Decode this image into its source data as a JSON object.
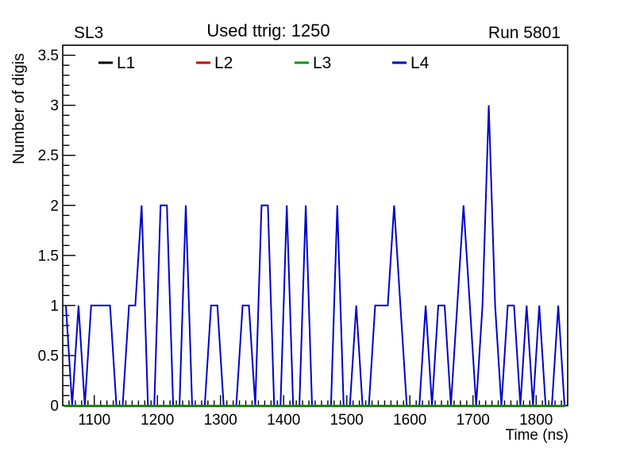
{
  "header": {
    "left": "SL3",
    "center": "Used ttrig: 1250",
    "right": "Run 5801"
  },
  "legend": [
    {
      "label": "L1",
      "color": "#000000"
    },
    {
      "label": "L2",
      "color": "#cc0000"
    },
    {
      "label": "L3",
      "color": "#009900"
    },
    {
      "label": "L4",
      "color": "#0000cc"
    }
  ],
  "chart_data": {
    "type": "line",
    "title": "Used ttrig: 1250",
    "xlabel": "Time (ns)",
    "ylabel": "Number of digis",
    "xlim": [
      1050,
      1850
    ],
    "ylim": [
      0,
      3.6
    ],
    "x_ticks": [
      1100,
      1200,
      1300,
      1400,
      1500,
      1600,
      1700,
      1800
    ],
    "x_minor_step": 10,
    "y_ticks": [
      0,
      0.5,
      1,
      1.5,
      2,
      2.5,
      3,
      3.5
    ],
    "y_tick_labels": [
      "0",
      "0.5",
      "1",
      "1.5",
      "2",
      "2.5",
      "3",
      "3.5"
    ],
    "y_minor_step": 0.1,
    "bin_width": 10,
    "x": [
      1055,
      1065,
      1075,
      1085,
      1095,
      1105,
      1115,
      1125,
      1135,
      1145,
      1155,
      1165,
      1175,
      1185,
      1195,
      1205,
      1215,
      1225,
      1235,
      1245,
      1255,
      1265,
      1275,
      1285,
      1295,
      1305,
      1315,
      1325,
      1335,
      1345,
      1355,
      1365,
      1375,
      1385,
      1395,
      1405,
      1415,
      1425,
      1435,
      1445,
      1455,
      1465,
      1475,
      1485,
      1495,
      1505,
      1515,
      1525,
      1535,
      1545,
      1555,
      1565,
      1575,
      1585,
      1595,
      1605,
      1615,
      1625,
      1635,
      1645,
      1655,
      1665,
      1675,
      1685,
      1695,
      1705,
      1715,
      1725,
      1735,
      1745,
      1755,
      1765,
      1775,
      1785,
      1795,
      1805,
      1815,
      1825,
      1835,
      1845
    ],
    "series": [
      {
        "name": "L1",
        "color": "#000000",
        "values": [
          0,
          0,
          0,
          0,
          0,
          0,
          0,
          0,
          0,
          0,
          0,
          0,
          0,
          0,
          0,
          0,
          0,
          0,
          0,
          0,
          0,
          0,
          0,
          0,
          0,
          0,
          0,
          0,
          0,
          0,
          0,
          0,
          0,
          0,
          0,
          0,
          0,
          0,
          0,
          0,
          0,
          0,
          0,
          0,
          0,
          0,
          0,
          0,
          0,
          0,
          0,
          0,
          0,
          0,
          0,
          0,
          0,
          0,
          0,
          0,
          0,
          0,
          0,
          0,
          0,
          0,
          0,
          0,
          0,
          0,
          0,
          0,
          0,
          0,
          0,
          0,
          0,
          0,
          0,
          0
        ]
      },
      {
        "name": "L2",
        "color": "#cc0000",
        "values": [
          0,
          0,
          0,
          0,
          0,
          0,
          0,
          0,
          0,
          0,
          0,
          0,
          0,
          0,
          0,
          0,
          0,
          0,
          0,
          0,
          0,
          0,
          0,
          0,
          0,
          0,
          0,
          0,
          0,
          0,
          0,
          0,
          0,
          0,
          0,
          0,
          0,
          0,
          0,
          0,
          0,
          0,
          0,
          0,
          0,
          0,
          0,
          0,
          0,
          0,
          0,
          0,
          0,
          0,
          0,
          0,
          0,
          0,
          0,
          0,
          0,
          0,
          0,
          0,
          0,
          0,
          0,
          0,
          0,
          0,
          0,
          0,
          0,
          0,
          0,
          0,
          0,
          0,
          0,
          0
        ]
      },
      {
        "name": "L3",
        "color": "#009900",
        "values": [
          0,
          0,
          0,
          0,
          0,
          0,
          0,
          0,
          0,
          0,
          0,
          0,
          0,
          0,
          0,
          0,
          0,
          0,
          0,
          0,
          0,
          0,
          0,
          0,
          0,
          0,
          0,
          0,
          0,
          0,
          0,
          0,
          0,
          0,
          0,
          0,
          0,
          0,
          0,
          0,
          0,
          0,
          0,
          0,
          0,
          0,
          0,
          0,
          0,
          0,
          0,
          0,
          0,
          0,
          0,
          0,
          0,
          0,
          0,
          0,
          0,
          0,
          0,
          0,
          0,
          0,
          0,
          0,
          0,
          0,
          0,
          0,
          0,
          0,
          0,
          0,
          0,
          0,
          0,
          0
        ]
      },
      {
        "name": "L4",
        "color": "#0000cc",
        "values": [
          1,
          0,
          1,
          0,
          1,
          1,
          1,
          1,
          0,
          0,
          1,
          1,
          2,
          0,
          0,
          2,
          2,
          0,
          0,
          2,
          0,
          0,
          0,
          1,
          1,
          0,
          0,
          0,
          1,
          1,
          0,
          2,
          2,
          0,
          0,
          2,
          0,
          0,
          2,
          0,
          0,
          0,
          0,
          2,
          0,
          0,
          1,
          0,
          0,
          1,
          1,
          1,
          2,
          1,
          0,
          0,
          0,
          1,
          0,
          1,
          1,
          0,
          1,
          2,
          1,
          0,
          1,
          3,
          1,
          0,
          1,
          1,
          0,
          1,
          0,
          1,
          0,
          0,
          1,
          0
        ]
      }
    ],
    "legend_position": "top-inside",
    "grid": false
  }
}
